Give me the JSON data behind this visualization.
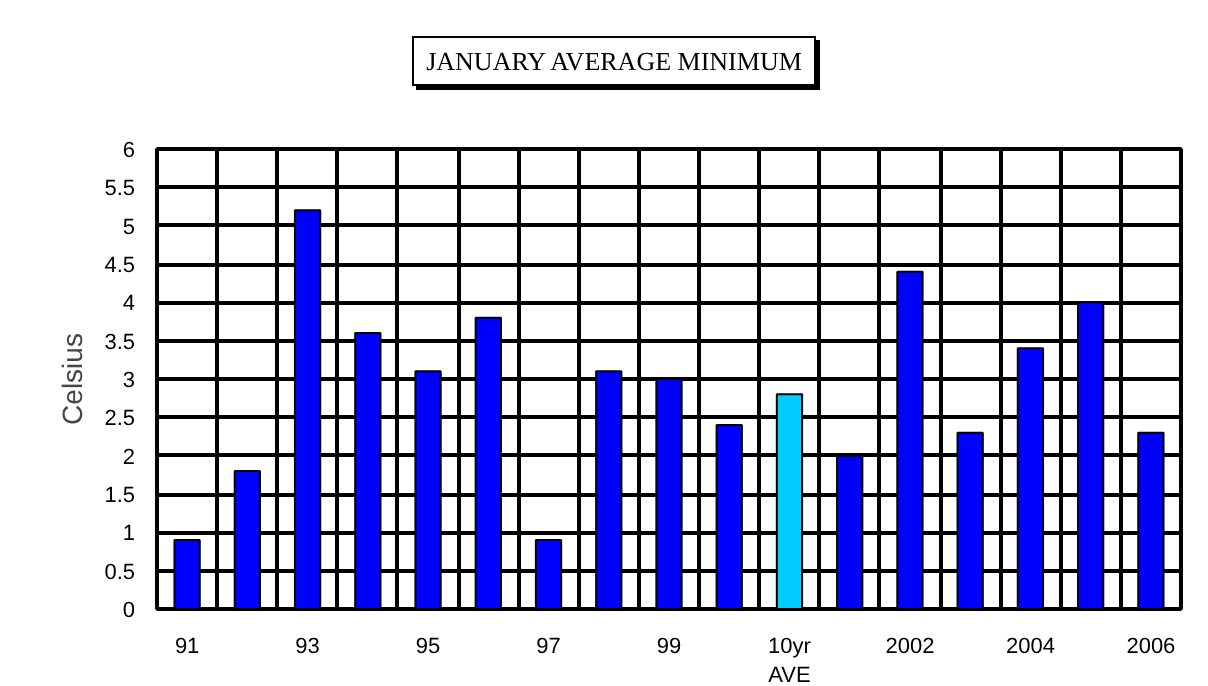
{
  "chart_data": {
    "type": "bar",
    "title": "JANUARY AVERAGE MINIMUM",
    "ylabel": "Celsius",
    "categories": [
      "91",
      null,
      "93",
      null,
      "95",
      null,
      "97",
      null,
      "99",
      null,
      "10yr\nAVE",
      null,
      "2002",
      null,
      "2004",
      null,
      "2006"
    ],
    "values": [
      0.9,
      1.8,
      5.2,
      3.6,
      3.1,
      3.8,
      0.9,
      3.1,
      3.0,
      2.4,
      2.8,
      2.0,
      4.4,
      2.3,
      3.4,
      4.0,
      2.3
    ],
    "colors": [
      "#0000ff",
      "#0000ff",
      "#0000ff",
      "#0000ff",
      "#0000ff",
      "#0000ff",
      "#0000ff",
      "#0000ff",
      "#0000ff",
      "#0000ff",
      "#00ccff",
      "#0000ff",
      "#0000ff",
      "#0000ff",
      "#0000ff",
      "#0000ff",
      "#0000ff"
    ],
    "ylim": [
      0,
      6
    ],
    "yticks": [
      0,
      0.5,
      1,
      1.5,
      2,
      2.5,
      3,
      3.5,
      4,
      4.5,
      5,
      5.5,
      6
    ],
    "grid": true
  }
}
